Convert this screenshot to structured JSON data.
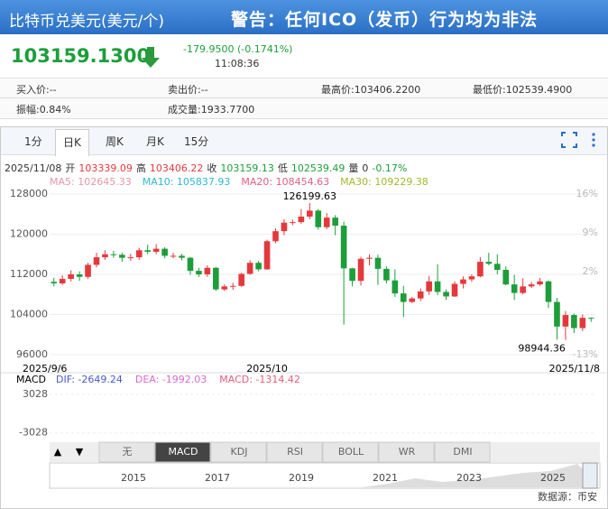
{
  "header": {
    "title": "比特币兑美元(美元/个)",
    "warning": "警告：任何ICO（发币）行为均为非法"
  },
  "quote": {
    "price": "103159.1300",
    "change": "-179.9500 (-0.1741%)",
    "time": "11:08:36"
  },
  "stats": [
    [
      "买入价:--",
      "卖出价:--",
      "最高价:103406.2200",
      "最低价:102539.4900"
    ],
    [
      "振幅:0.84%",
      "成交量:1933.7700"
    ]
  ],
  "tabs": [
    "1分",
    "日K",
    "周K",
    "月K",
    "15分"
  ],
  "chart_data": {
    "type": "candlestick",
    "info": [
      {
        "text": "2025/11/08",
        "color": "#333"
      },
      {
        "text": "开",
        "color": "#333"
      },
      {
        "text": "103339.09",
        "color": "#e4393c"
      },
      {
        "text": "高",
        "color": "#333"
      },
      {
        "text": "103406.22",
        "color": "#e4393c"
      },
      {
        "text": "收",
        "color": "#333"
      },
      {
        "text": "103159.13",
        "color": "#1d9e3a"
      },
      {
        "text": "低",
        "color": "#333"
      },
      {
        "text": "102539.49",
        "color": "#1d9e3a"
      },
      {
        "text": "量",
        "color": "#333"
      },
      {
        "text": "0",
        "color": "#333"
      },
      {
        "text": "-0.17%",
        "color": "#1d9e3a"
      }
    ],
    "ma_legend": [
      {
        "label": "MA5: 102645.33",
        "color": "#e897a8"
      },
      {
        "label": "MA10: 105837.93",
        "color": "#2fb8d5"
      },
      {
        "label": "MA20: 108454.63",
        "color": "#e0607e"
      },
      {
        "label": "MA30: 109229.38",
        "color": "#a5b82c"
      }
    ],
    "up_color": "#e4393c",
    "down_color": "#1d9e3a",
    "categories": [
      "2025/9/6",
      null,
      null,
      null,
      null,
      null,
      null,
      null,
      null,
      null,
      null,
      null,
      null,
      null,
      null,
      null,
      null,
      null,
      null,
      null,
      null,
      null,
      null,
      null,
      null,
      "2025/10",
      null,
      null,
      null,
      null,
      null,
      null,
      null,
      null,
      null,
      null,
      null,
      null,
      null,
      null,
      null,
      null,
      null,
      null,
      null,
      null,
      null,
      null,
      null,
      null,
      null,
      null,
      null,
      null,
      null,
      null,
      null,
      null,
      null,
      null,
      null,
      null,
      null,
      "2025/11/8"
    ],
    "open": [
      110500,
      110200,
      111100,
      112000,
      111500,
      113900,
      115400,
      116000,
      115900,
      115300,
      115400,
      116800,
      116500,
      117100,
      115700,
      115700,
      115300,
      112700,
      112000,
      113300,
      109000,
      109600,
      109700,
      112100,
      114300,
      113000,
      118600,
      120600,
      122300,
      122400,
      123500,
      124700,
      121400,
      123300,
      121700,
      113200,
      110700,
      115100,
      115300,
      113100,
      110800,
      108200,
      106500,
      107200,
      108600,
      110600,
      108500,
      107600,
      110100,
      111000,
      111600,
      114500,
      114100,
      112900,
      110000,
      108300,
      109600,
      110000,
      110600,
      106500,
      101600,
      103900,
      101300,
      103339.09
    ],
    "high": [
      111300,
      111800,
      112800,
      112600,
      114300,
      116300,
      116800,
      116700,
      116300,
      116100,
      117300,
      117900,
      118000,
      117400,
      116300,
      116100,
      115500,
      113300,
      113800,
      113500,
      110000,
      110300,
      112300,
      114800,
      114700,
      118900,
      121200,
      123000,
      122900,
      125000,
      126199.63,
      125000,
      124200,
      123800,
      122500,
      113300,
      115500,
      116000,
      115900,
      113600,
      113000,
      109700,
      107500,
      109200,
      111700,
      114000,
      109000,
      110600,
      111600,
      112000,
      115400,
      116300,
      116000,
      113600,
      111900,
      111200,
      110500,
      111300,
      110800,
      107300,
      104700,
      104200,
      104000,
      103406.22
    ],
    "low": [
      109600,
      109900,
      110600,
      110700,
      111100,
      113400,
      114900,
      115300,
      114500,
      114700,
      114900,
      116000,
      116000,
      115200,
      115200,
      114800,
      111900,
      111500,
      111500,
      108700,
      108700,
      108900,
      109500,
      111900,
      112600,
      112900,
      118200,
      119800,
      121800,
      122100,
      123000,
      120900,
      121000,
      119800,
      102000,
      109600,
      109800,
      113800,
      109900,
      110200,
      107500,
      103500,
      106300,
      106700,
      107900,
      107900,
      106900,
      107500,
      109200,
      110500,
      111400,
      113800,
      112000,
      109800,
      106900,
      108000,
      109300,
      109700,
      105300,
      99000,
      98944.36,
      100300,
      100700,
      102539.49
    ],
    "close": [
      110200,
      111100,
      112000,
      111500,
      113900,
      115400,
      116000,
      115900,
      115300,
      115400,
      116800,
      116500,
      117100,
      115700,
      115700,
      115300,
      112700,
      112000,
      113300,
      109000,
      109600,
      109700,
      112100,
      114300,
      113000,
      118600,
      120600,
      122300,
      122400,
      123500,
      124700,
      121400,
      123300,
      121700,
      113200,
      110700,
      115100,
      115300,
      113100,
      110800,
      108200,
      106500,
      107200,
      108600,
      110600,
      108500,
      107600,
      110100,
      111000,
      111600,
      114500,
      114100,
      112900,
      110000,
      108300,
      109600,
      110000,
      110600,
      106500,
      101600,
      103900,
      101300,
      103339.09,
      103159.13
    ],
    "ylim": [
      96000,
      128000
    ],
    "yticks": [
      128000,
      120000,
      112000,
      104000,
      96000
    ],
    "y2lim": [
      -13,
      16
    ],
    "y2ticks": [
      {
        "value": 16,
        "label": "16%"
      },
      {
        "value": 9,
        "label": "9%"
      },
      {
        "value": 2,
        "label": "2%"
      },
      {
        "value": -13,
        "label": "-13%"
      }
    ],
    "annotations": [
      "126199.63",
      "98944.36"
    ],
    "macd": {
      "title": "MACD",
      "legend": [
        {
          "label": "DIF: -2649.24",
          "color": "#4a5ac8"
        },
        {
          "label": "DEA: -1992.03",
          "color": "#d86bd0"
        },
        {
          "label": "MACD: -1314.42",
          "color": "#e0607e"
        }
      ],
      "ylim": [
        -4200,
        4300
      ],
      "yticks": [
        3028,
        -3028
      ]
    }
  },
  "indicator_tabs": [
    "无",
    "MACD",
    "KDJ",
    "RSI",
    "BOLL",
    "WR",
    "DMI"
  ],
  "nav_years": [
    "2015",
    "2017",
    "2019",
    "2021",
    "2023",
    "2025"
  ],
  "footer": "数据源：币安"
}
